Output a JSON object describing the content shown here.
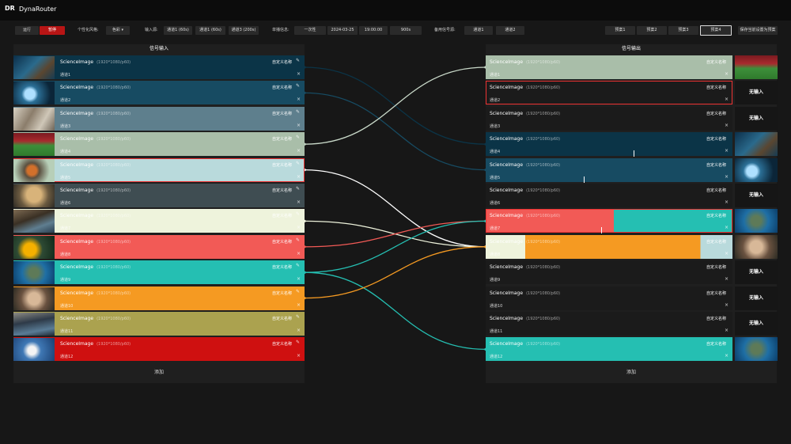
{
  "app": {
    "logo": "DR",
    "title": "DynaRouter"
  },
  "toolbar": {
    "run": "运行",
    "pause": "暂停",
    "style_label": "个性化风格:",
    "style_value": "色彩",
    "style_caret": "▾",
    "input_src_label": "输入源:",
    "input_src": [
      "通道1 (60s)",
      "通道1 (60s)",
      "通道3 (200s)"
    ],
    "broadcast_label": "单播信息:",
    "broadcast": [
      "一次性",
      "2024-03-25",
      "19:00:00",
      "900s"
    ],
    "backup_label": "备用信号源:",
    "backup": [
      "通道1",
      "通道2"
    ],
    "presets": [
      "预案1",
      "预案2",
      "预案3",
      "预案4"
    ],
    "save_preset": "保存当前设置为预案"
  },
  "input_panel": {
    "title": "信号输入",
    "add": "添加",
    "rows": [
      {
        "name": "ScienceImage",
        "res": "(1920*1080/p60)",
        "channel": "通道1",
        "custom": "自定义名称",
        "color": "#0b3447",
        "thumb": "deepsea"
      },
      {
        "name": "ScienceImage",
        "res": "(1920*1080/p60)",
        "channel": "通道2",
        "custom": "自定义名称",
        "color": "#174b62",
        "thumb": "bird"
      },
      {
        "name": "ScienceImage",
        "res": "(1920*1080/p60)",
        "channel": "通道3",
        "custom": "自定义名称",
        "color": "#5e7f8d",
        "thumb": "cat"
      },
      {
        "name": "ScienceImage",
        "res": "(1920*1080/p60)",
        "channel": "通道4",
        "custom": "自定义名称",
        "color": "#a9bea9",
        "thumb": "stadium"
      },
      {
        "name": "ScienceImage",
        "res": "(1920*1080/p60)",
        "channel": "通道5",
        "custom": "自定义名称",
        "color": "#b9dadc",
        "thumb": "robin"
      },
      {
        "name": "ScienceImage",
        "res": "(1920*1080/p60)",
        "channel": "通道6",
        "custom": "自定义名称",
        "color": "#3f4d52",
        "thumb": "dog"
      },
      {
        "name": "ScienceImage",
        "res": "(1920*1080/p60)",
        "channel": "通道7",
        "custom": "自定义名称",
        "color": "#eef3dc",
        "thumb": "otter"
      },
      {
        "name": "ScienceImage",
        "res": "(1920*1080/p60)",
        "channel": "通道8",
        "custom": "自定义名称",
        "color": "#f25a56",
        "thumb": "fruit"
      },
      {
        "name": "ScienceImage",
        "res": "(1920*1080/p60)",
        "channel": "通道9",
        "custom": "自定义名称",
        "color": "#25bfb2",
        "thumb": "turtle"
      },
      {
        "name": "ScienceImage",
        "res": "(1920*1080/p60)",
        "channel": "通道10",
        "custom": "自定义名称",
        "color": "#f59a22",
        "thumb": "fox"
      },
      {
        "name": "ScienceImage",
        "res": "(1920*1080/p60)",
        "channel": "通道11",
        "custom": "自定义名称",
        "color": "#aba24f",
        "thumb": "otter2"
      },
      {
        "name": "ScienceImage",
        "res": "(1920*1080/p60)",
        "channel": "通道12",
        "custom": "自定义名称",
        "color": "#cf1010",
        "thumb": "swan"
      }
    ]
  },
  "output_panel": {
    "title": "信号输出",
    "add": "添加",
    "no_input": "无输入",
    "rows": [
      {
        "name": "ScienceImage",
        "res": "(1920*1080/p60)",
        "channel": "通道1",
        "custom": "自定义名称",
        "bg": "#a9bea9",
        "thumb": "stadium"
      },
      {
        "name": "ScienceImage",
        "res": "(1920*1080/p60)",
        "channel": "通道2",
        "custom": "自定义名称",
        "bg": "#1b1b1b",
        "thumb": ""
      },
      {
        "name": "ScienceImage",
        "res": "(1920*1080/p60)",
        "channel": "通道3",
        "custom": "自定义名称",
        "bg": "#1b1b1b",
        "thumb": ""
      },
      {
        "name": "ScienceImage",
        "res": "(1920*1080/p60)",
        "channel": "通道4",
        "custom": "自定义名称",
        "bg": "#0b3447",
        "thumb": "deepsea"
      },
      {
        "name": "ScienceImage",
        "res": "(1920*1080/p60)",
        "channel": "通道5",
        "custom": "自定义名称",
        "bg": "#174b62",
        "thumb": "bird"
      },
      {
        "name": "ScienceImage",
        "res": "(1920*1080/p60)",
        "channel": "通道6",
        "custom": "自定义名称",
        "bg": "#1b1b1b",
        "thumb": ""
      },
      {
        "name": "ScienceImage",
        "res": "(1920*1080/p60)",
        "channel": "通道7",
        "custom": "自定义名称",
        "bg": "split-coral-teal",
        "thumb": "turtle"
      },
      {
        "name": "ScienceImage",
        "res": "(1920*1080/p60)",
        "channel": "通道8",
        "custom": "自定义名称",
        "bg": "split-cream-orange-blue",
        "thumb": "fox"
      },
      {
        "name": "ScienceImage",
        "res": "(1920*1080/p60)",
        "channel": "通道9",
        "custom": "自定义名称",
        "bg": "#1b1b1b",
        "thumb": ""
      },
      {
        "name": "ScienceImage",
        "res": "(1920*1080/p60)",
        "channel": "通道10",
        "custom": "自定义名称",
        "bg": "#1b1b1b",
        "thumb": ""
      },
      {
        "name": "ScienceImage",
        "res": "(1920*1080/p60)",
        "channel": "通道11",
        "custom": "自定义名称",
        "bg": "#1b1b1b",
        "thumb": ""
      },
      {
        "name": "ScienceImage",
        "res": "(1920*1080/p60)",
        "channel": "通道12",
        "custom": "自定义名称",
        "bg": "#25bfb2",
        "thumb": "turtle"
      }
    ]
  },
  "links": [
    {
      "from": 1,
      "to": 4,
      "color": "#0b3447"
    },
    {
      "from": 2,
      "to": 5,
      "color": "#174b62"
    },
    {
      "from": 4,
      "to": 1,
      "color": "#c9d9c9"
    },
    {
      "from": 5,
      "to": 8,
      "color": "#ffffff"
    },
    {
      "from": 7,
      "to": 8,
      "color": "#eef3dc"
    },
    {
      "from": 8,
      "to": 7,
      "color": "#f25a56"
    },
    {
      "from": 9,
      "to": 7,
      "color": "#25bfb2"
    },
    {
      "from": 9,
      "to": 12,
      "color": "#25bfb2"
    },
    {
      "from": 10,
      "to": 8,
      "color": "#f59a22"
    }
  ]
}
